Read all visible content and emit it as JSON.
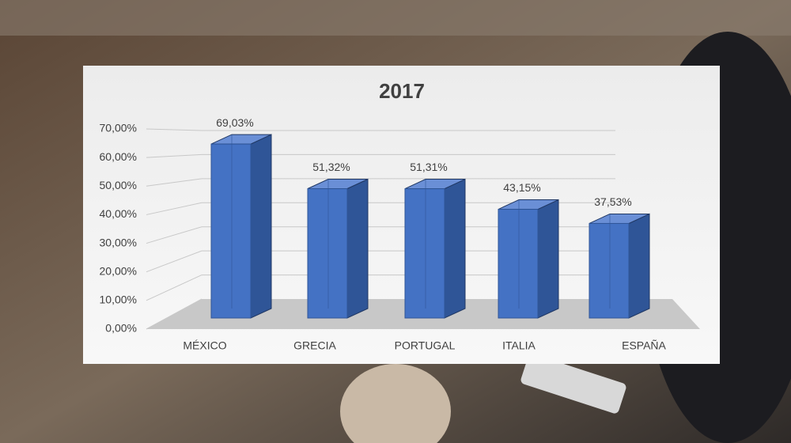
{
  "chart_data": {
    "type": "bar3d",
    "title": "2017",
    "categories": [
      "MÉXICO",
      "GRECIA",
      "PORTUGAL",
      "ITALIA",
      "ESPAÑA"
    ],
    "values": [
      69.03,
      51.32,
      51.31,
      43.15,
      37.53
    ],
    "value_labels": [
      "69,03%",
      "51,32%",
      "51,31%",
      "43,15%",
      "37,53%"
    ],
    "color": "#4472c4",
    "ylim": [
      0,
      70
    ],
    "yticks": [
      {
        "value": 0,
        "label": "0,00%"
      },
      {
        "value": 10,
        "label": "10,00%"
      },
      {
        "value": 20,
        "label": "20,00%"
      },
      {
        "value": 30,
        "label": "30,00%"
      },
      {
        "value": 40,
        "label": "40,00%"
      },
      {
        "value": 50,
        "label": "50,00%"
      },
      {
        "value": 60,
        "label": "60,00%"
      },
      {
        "value": 70,
        "label": "70,00%"
      }
    ],
    "grid": true
  }
}
